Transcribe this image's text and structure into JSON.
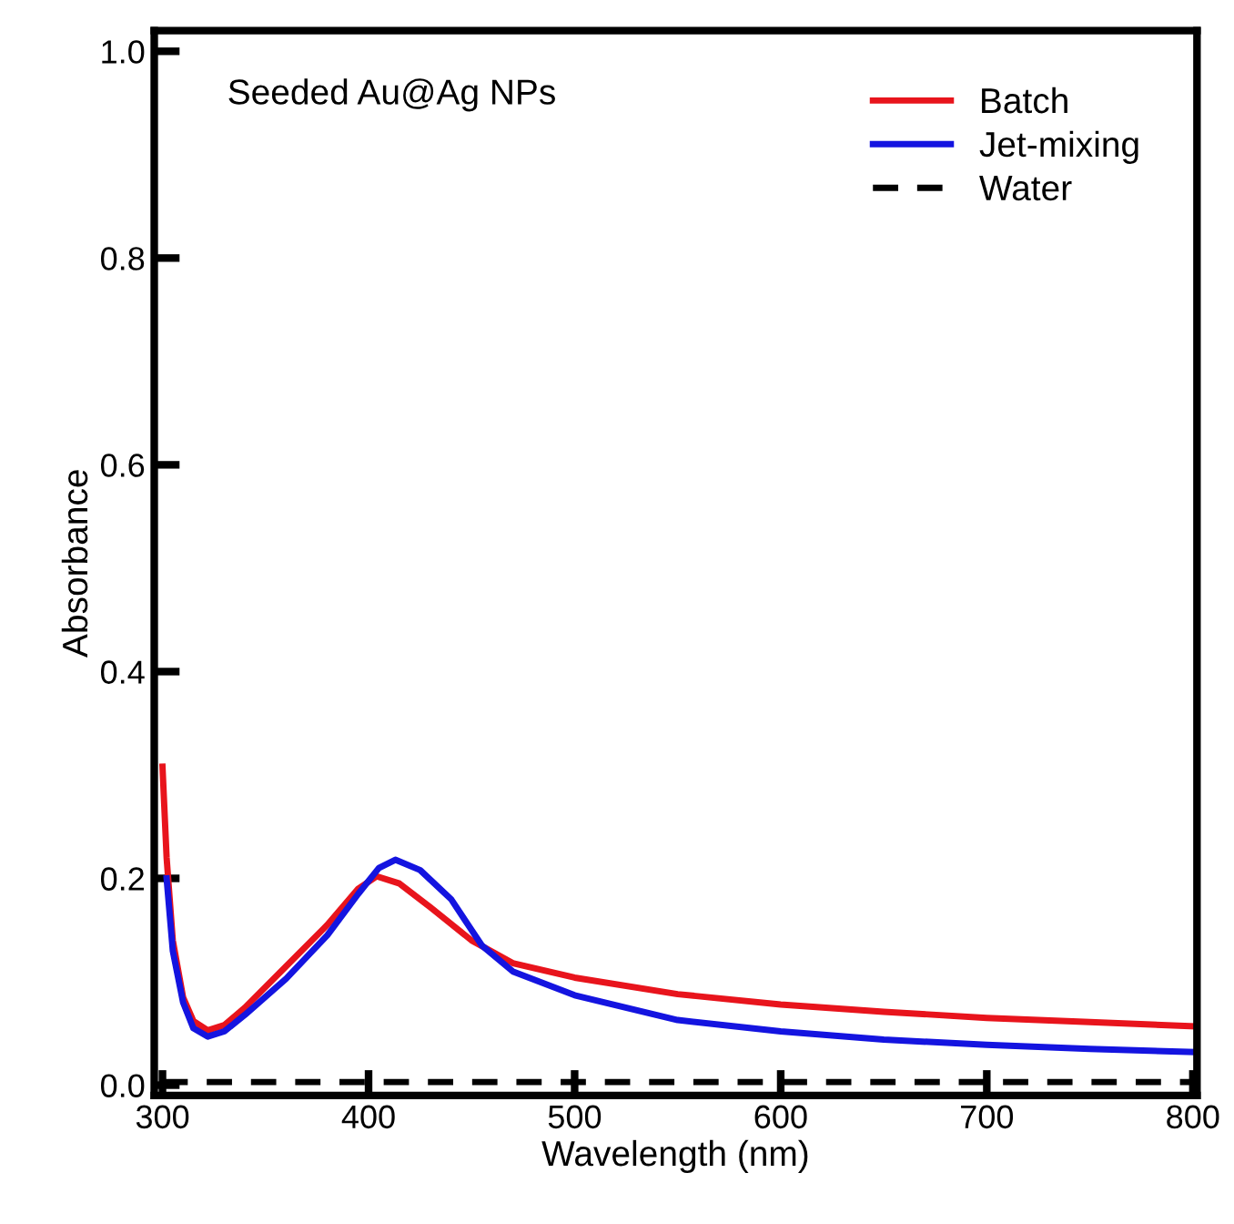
{
  "chart_data": {
    "type": "line",
    "xlabel": "Wavelength (nm)",
    "ylabel": "Absorbance",
    "annotations": [
      "Seeded Au@Ag NPs"
    ],
    "xlim": [
      296,
      802
    ],
    "ylim": [
      -0.01,
      1.02
    ],
    "xticks": [
      300,
      400,
      500,
      600,
      700,
      800
    ],
    "yticks": [
      {
        "value": 0,
        "label": "0.0"
      },
      0.2,
      0.4,
      0.6,
      0.8,
      {
        "value": 1,
        "label": "1.0"
      }
    ],
    "legend": "top right",
    "grid": false,
    "series": [
      {
        "name": "Batch",
        "color": "#e8141c",
        "line_style": "solid",
        "x": [
          300,
          302,
          305,
          310,
          315,
          322,
          330,
          340,
          360,
          380,
          395,
          404,
          415,
          430,
          450,
          470,
          500,
          550,
          600,
          650,
          700,
          750,
          800
        ],
        "values": [
          0.308,
          0.22,
          0.14,
          0.085,
          0.062,
          0.053,
          0.058,
          0.075,
          0.115,
          0.155,
          0.19,
          0.202,
          0.195,
          0.172,
          0.14,
          0.118,
          0.104,
          0.088,
          0.078,
          0.071,
          0.065,
          0.061,
          0.057
        ]
      },
      {
        "name": "Jet-mixing",
        "color": "#1414e0",
        "line_style": "solid",
        "x": [
          302,
          305,
          310,
          315,
          322,
          330,
          340,
          360,
          380,
          395,
          405,
          413,
          425,
          440,
          455,
          470,
          500,
          550,
          600,
          650,
          700,
          750,
          800
        ],
        "values": [
          0.2,
          0.13,
          0.08,
          0.055,
          0.047,
          0.052,
          0.068,
          0.103,
          0.145,
          0.185,
          0.21,
          0.218,
          0.208,
          0.18,
          0.135,
          0.11,
          0.087,
          0.063,
          0.052,
          0.044,
          0.039,
          0.035,
          0.032
        ]
      },
      {
        "name": "Water",
        "color": "#000000",
        "line_style": "dashed",
        "x": [
          300,
          800
        ],
        "values": [
          0.003,
          0.003
        ]
      }
    ]
  }
}
